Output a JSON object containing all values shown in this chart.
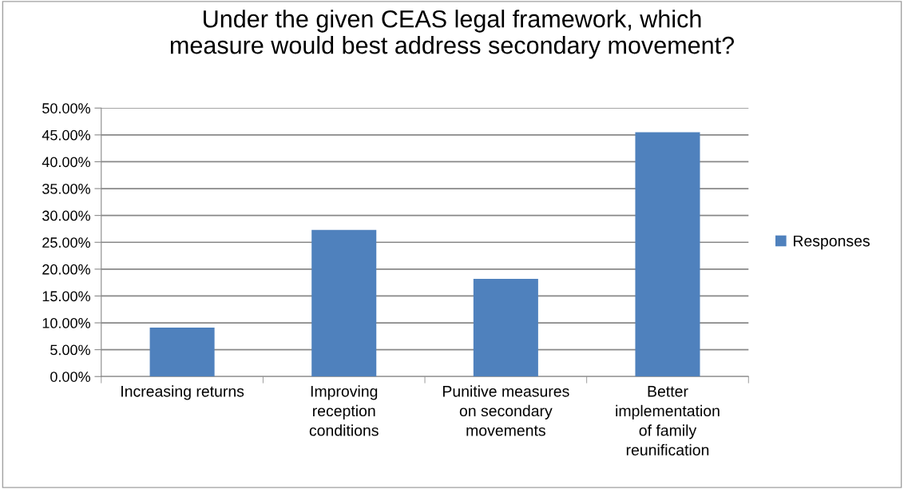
{
  "chart_data": {
    "type": "bar",
    "title": "Under the given CEAS legal framework, which\nmeasure would best address secondary movement?",
    "categories": [
      "Increasing returns",
      "Improving\nreception\nconditions",
      "Punitive measures\non secondary\nmovements",
      "Better\nimplementation\nof family\nreunification"
    ],
    "series": [
      {
        "name": "Responses",
        "color": "#4f81bd",
        "values": [
          9.1,
          27.3,
          18.2,
          45.5
        ]
      }
    ],
    "ylim": [
      0,
      50
    ],
    "yticks": [
      {
        "value": 0,
        "label": "0.00%"
      },
      {
        "value": 5,
        "label": "5.00%"
      },
      {
        "value": 10,
        "label": "10.00%"
      },
      {
        "value": 15,
        "label": "15.00%"
      },
      {
        "value": 20,
        "label": "20.00%"
      },
      {
        "value": 25,
        "label": "25.00%"
      },
      {
        "value": 30,
        "label": "30.00%"
      },
      {
        "value": 35,
        "label": "35.00%"
      },
      {
        "value": 40,
        "label": "40.00%"
      },
      {
        "value": 45,
        "label": "45.00%"
      },
      {
        "value": 50,
        "label": "50.00%"
      }
    ],
    "grid": "y",
    "legend": "right"
  }
}
